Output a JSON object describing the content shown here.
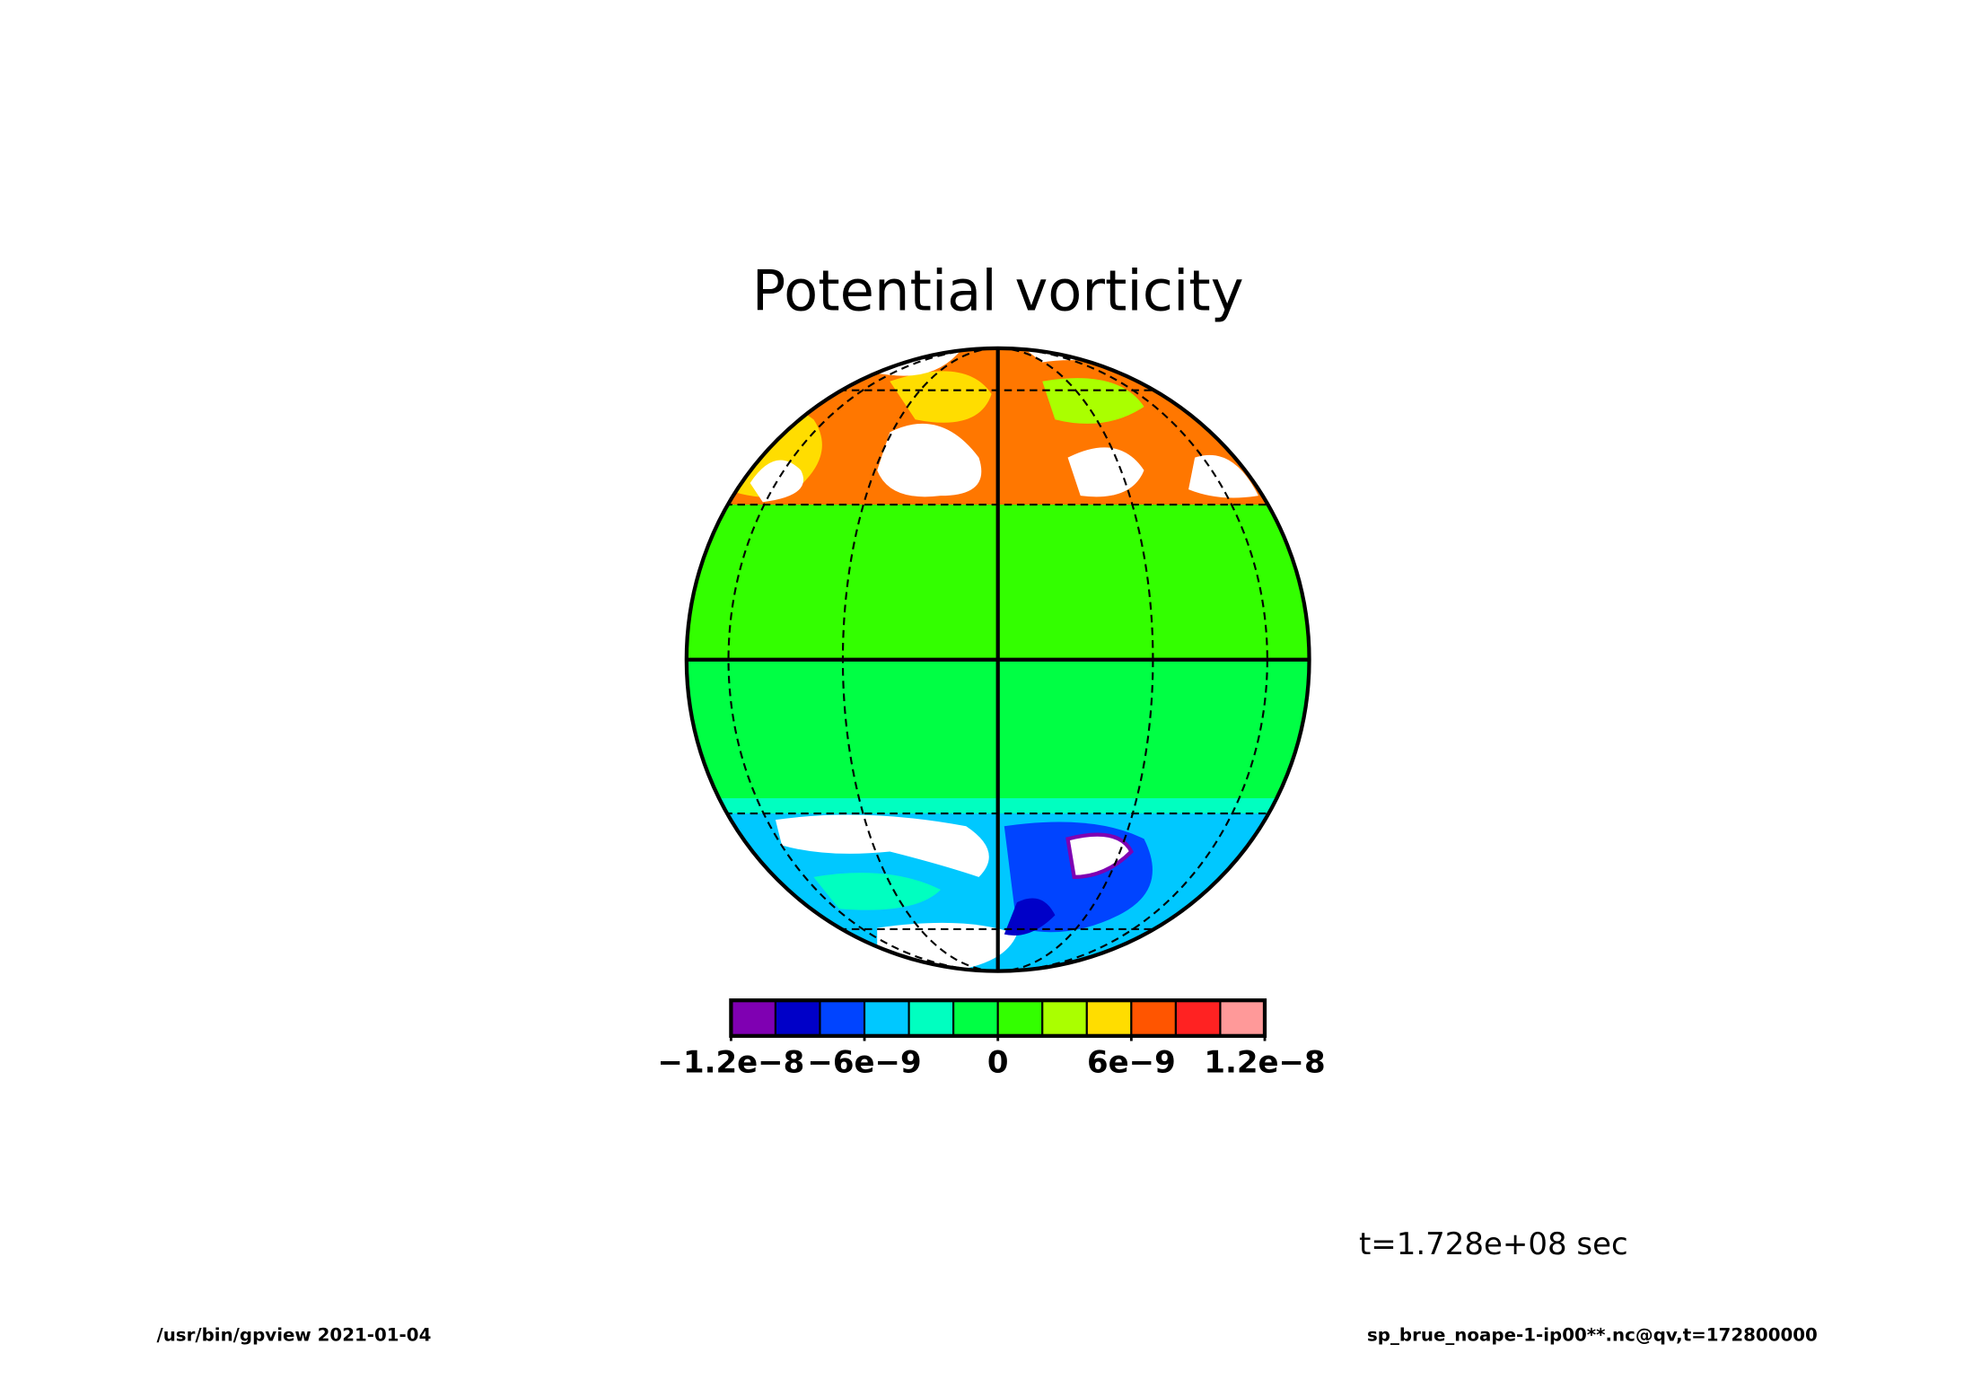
{
  "chart_data": {
    "type": "colormap",
    "title": "Potential vorticity",
    "annotation": "t=1.728e+08 sec",
    "footer_left": "/usr/bin/gpview  2021-01-04",
    "footer_right": "sp_brue_noape-1-ip00**.nc@qv,t=172800000",
    "colorbar": {
      "levels": [
        -1.2e-08,
        -1e-08,
        -8e-09,
        -6e-09,
        -4e-09,
        -2e-09,
        0,
        2e-09,
        4e-09,
        6e-09,
        8e-09,
        1e-08,
        1.2e-08
      ],
      "colors": [
        "#7f00b2",
        "#0000c8",
        "#0044ff",
        "#00c8ff",
        "#00ffc0",
        "#00ff44",
        "#33ff00",
        "#aaff00",
        "#ffdd00",
        "#ff5500",
        "#ff2222",
        "#ff9999"
      ],
      "ticks": [
        {
          "value": -1.2e-08,
          "label": "−1.2e−8"
        },
        {
          "value": -6e-09,
          "label": "−6e−9"
        },
        0,
        {
          "value": 6e-09,
          "label": "6e−9"
        },
        {
          "value": 1.2e-08,
          "label": "1.2e−8"
        }
      ]
    }
  }
}
